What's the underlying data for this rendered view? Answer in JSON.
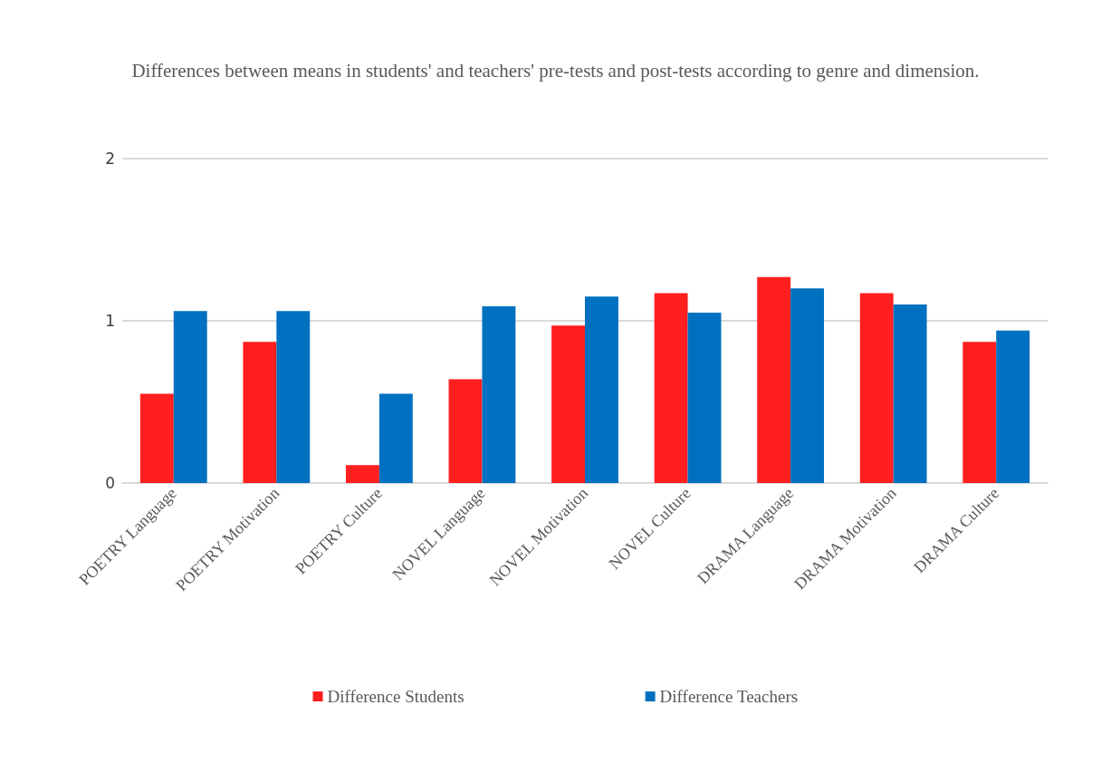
{
  "chart_data": {
    "type": "bar",
    "title": "Differences between means in students' and teachers' pre-tests and post-tests according to genre and dimension.",
    "categories": [
      "POETRY Language",
      "POETRY Motivation",
      "POETRY Culture",
      "NOVEL Language",
      "NOVEL Motivation",
      "NOVEL Culture",
      "DRAMA Language",
      "DRAMA Motivation",
      "DRAMA Culture"
    ],
    "series": [
      {
        "name": "Difference Students",
        "color": "#ff1f1f",
        "values": [
          0.55,
          0.87,
          0.11,
          0.64,
          0.97,
          1.17,
          1.27,
          1.17,
          0.87
        ]
      },
      {
        "name": "Difference Teachers",
        "color": "#0070c0",
        "values": [
          1.06,
          1.06,
          0.55,
          1.09,
          1.15,
          1.05,
          1.2,
          1.1,
          0.94
        ]
      }
    ],
    "ylim": [
      0,
      2
    ],
    "yticks": [
      0,
      1,
      2
    ],
    "grid": "y",
    "legend": "bottom"
  }
}
